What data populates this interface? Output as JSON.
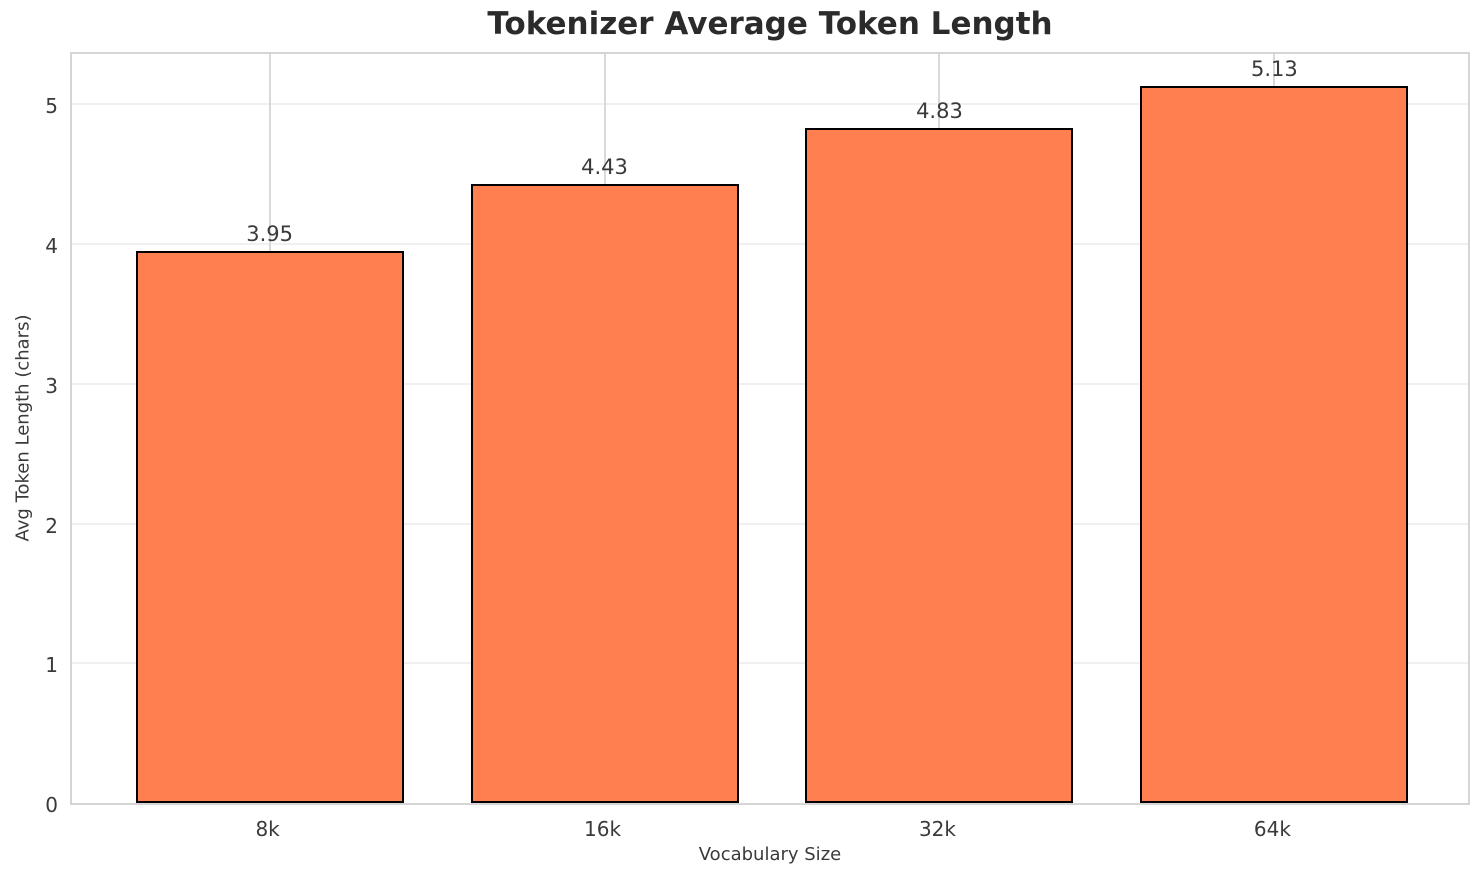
{
  "chart_data": {
    "type": "bar",
    "title": "Tokenizer Average Token Length",
    "xlabel": "Vocabulary Size",
    "ylabel": "Avg Token Length (chars)",
    "categories": [
      "8k",
      "16k",
      "32k",
      "64k"
    ],
    "values": [
      3.95,
      4.43,
      4.83,
      5.13
    ],
    "value_labels": [
      "3.95",
      "4.43",
      "4.83",
      "5.13"
    ],
    "yticks": [
      0,
      1,
      2,
      3,
      4,
      5
    ],
    "ylim": [
      0,
      5.39
    ],
    "xlim": [
      -0.59,
      3.59
    ],
    "bar_width": 0.8,
    "grid": true,
    "legend_position": "none",
    "bar_color": "#FF7F50",
    "bar_edge_color": "#000000",
    "grid_color_horizontal": "#f0f0f0",
    "grid_color_vertical": "#d9d9d9",
    "spine_color": "#d5d5d5",
    "title_color": "#2b2b2b",
    "text_color": "#3a3a3a",
    "background_color": "#ffffff"
  }
}
